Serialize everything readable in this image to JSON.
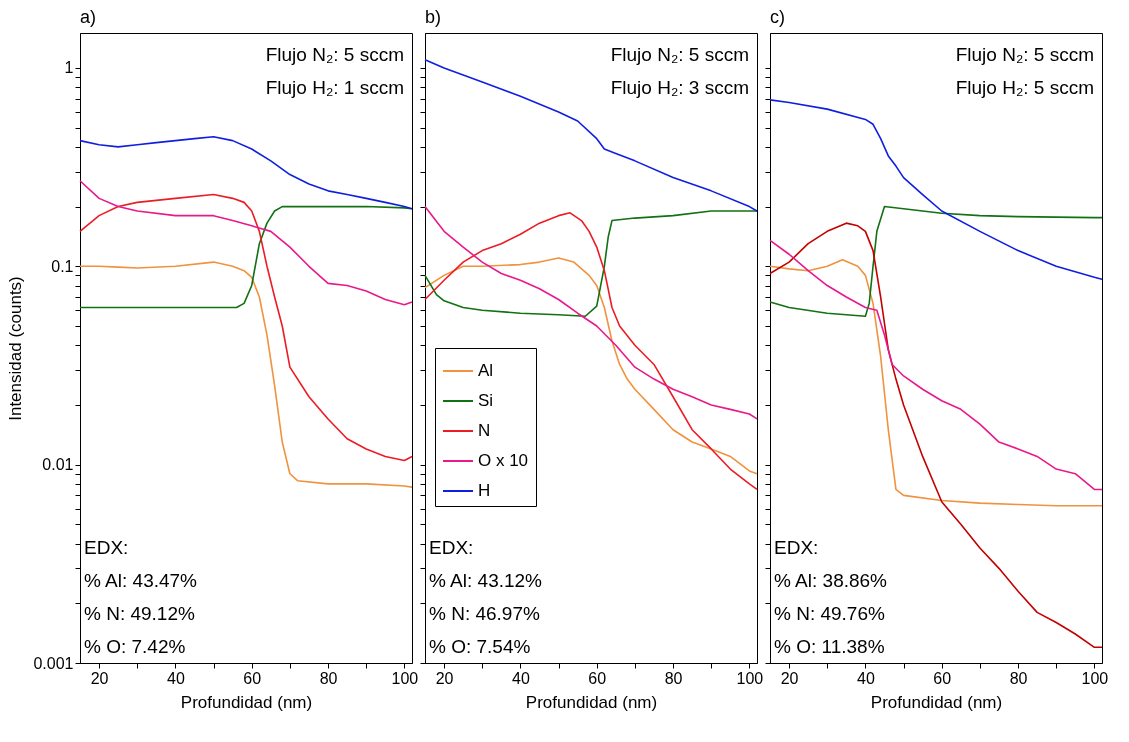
{
  "chart_data": [
    {
      "type": "line",
      "title": "a)",
      "xlabel": "Profundidad (nm)",
      "ylabel": "Intensidad (counts)",
      "log": "y",
      "xlim": [
        15,
        102
      ],
      "ylim": [
        0.001,
        1.5
      ],
      "xticks": [
        20,
        {
          "value": 30,
          "label": null
        },
        40,
        {
          "value": 50,
          "label": null
        },
        60,
        {
          "value": 70,
          "label": null
        },
        80,
        {
          "value": 90,
          "label": null
        },
        100
      ],
      "yticks": [
        0.001,
        {
          "value": 0.002,
          "label": null
        },
        {
          "value": 0.003,
          "label": null
        },
        {
          "value": 0.004,
          "label": null
        },
        {
          "value": 0.005,
          "label": null
        },
        {
          "value": 0.006,
          "label": null
        },
        {
          "value": 0.007,
          "label": null
        },
        {
          "value": 0.008,
          "label": null
        },
        {
          "value": 0.009,
          "label": null
        },
        0.01,
        {
          "value": 0.02,
          "label": null
        },
        {
          "value": 0.03,
          "label": null
        },
        {
          "value": 0.04,
          "label": null
        },
        {
          "value": 0.05,
          "label": null
        },
        {
          "value": 0.06,
          "label": null
        },
        {
          "value": 0.07,
          "label": null
        },
        {
          "value": 0.08,
          "label": null
        },
        {
          "value": 0.09,
          "label": null
        },
        0.1,
        {
          "value": 0.2,
          "label": null
        },
        {
          "value": 0.3,
          "label": null
        },
        {
          "value": 0.4,
          "label": null
        },
        {
          "value": 0.5,
          "label": null
        },
        {
          "value": 0.6,
          "label": null
        },
        {
          "value": 0.7,
          "label": null
        },
        {
          "value": 0.8,
          "label": null
        },
        {
          "value": 0.9,
          "label": null
        },
        1
      ],
      "grid": false,
      "annotations": [
        "Flujo N₂: 5 sccm",
        "Flujo H₂: 1 sccm",
        "EDX:",
        "% Al: 43.47%",
        "% N: 49.12%",
        "% O: 7.42%"
      ],
      "series": [
        {
          "color": "#f0923e",
          "x": [
            15,
            20,
            25,
            30,
            40,
            50,
            55,
            58,
            60,
            62,
            64,
            66,
            68,
            70,
            72,
            80,
            90,
            100,
            102
          ],
          "values": [
            0.1,
            0.1,
            0.099,
            0.098,
            0.1,
            0.105,
            0.1,
            0.095,
            0.088,
            0.07,
            0.045,
            0.025,
            0.013,
            0.009,
            0.0083,
            0.008,
            0.008,
            0.0078,
            0.0077
          ]
        },
        {
          "color": "#127112",
          "x": [
            15,
            20,
            30,
            40,
            50,
            56,
            58,
            60,
            62,
            64,
            66,
            68,
            70,
            80,
            90,
            100,
            102
          ],
          "values": [
            0.062,
            0.062,
            0.062,
            0.062,
            0.062,
            0.062,
            0.065,
            0.08,
            0.13,
            0.165,
            0.19,
            0.2,
            0.2,
            0.2,
            0.2,
            0.197,
            0.195
          ]
        },
        {
          "color": "#ec1c24",
          "x": [
            15,
            20,
            25,
            30,
            40,
            50,
            55,
            58,
            60,
            62,
            64,
            66,
            68,
            70,
            75,
            80,
            85,
            90,
            95,
            100,
            102
          ],
          "values": [
            0.15,
            0.18,
            0.2,
            0.21,
            0.22,
            0.23,
            0.22,
            0.21,
            0.19,
            0.15,
            0.1,
            0.07,
            0.05,
            0.031,
            0.022,
            0.017,
            0.0135,
            0.012,
            0.011,
            0.0105,
            0.011
          ]
        },
        {
          "color": "#e8198b",
          "x": [
            15,
            20,
            25,
            30,
            40,
            50,
            55,
            60,
            65,
            70,
            75,
            80,
            85,
            90,
            95,
            100,
            102
          ],
          "values": [
            0.27,
            0.22,
            0.2,
            0.19,
            0.18,
            0.18,
            0.17,
            0.16,
            0.15,
            0.125,
            0.1,
            0.082,
            0.08,
            0.075,
            0.068,
            0.064,
            0.066
          ]
        },
        {
          "color": "#0f1fe0",
          "x": [
            15,
            20,
            25,
            30,
            35,
            40,
            45,
            50,
            55,
            60,
            65,
            70,
            75,
            80,
            85,
            90,
            95,
            100,
            102
          ],
          "values": [
            0.43,
            0.41,
            0.4,
            0.41,
            0.42,
            0.43,
            0.44,
            0.45,
            0.43,
            0.39,
            0.34,
            0.29,
            0.26,
            0.24,
            0.23,
            0.22,
            0.21,
            0.2,
            0.195
          ]
        }
      ]
    },
    {
      "type": "line",
      "title": "b)",
      "xlabel": "Profundidad (nm)",
      "log": "y",
      "xlim": [
        15,
        102
      ],
      "ylim": [
        0.001,
        1.5
      ],
      "tick_labels": "x",
      "legend": "left",
      "xticks": [
        20,
        {
          "value": 30,
          "label": null
        },
        40,
        {
          "value": 50,
          "label": null
        },
        60,
        {
          "value": 70,
          "label": null
        },
        80,
        {
          "value": 90,
          "label": null
        },
        100
      ],
      "yticks": [
        0.001,
        {
          "value": 0.002,
          "label": null
        },
        {
          "value": 0.003,
          "label": null
        },
        {
          "value": 0.004,
          "label": null
        },
        {
          "value": 0.005,
          "label": null
        },
        {
          "value": 0.006,
          "label": null
        },
        {
          "value": 0.007,
          "label": null
        },
        {
          "value": 0.008,
          "label": null
        },
        {
          "value": 0.009,
          "label": null
        },
        0.01,
        {
          "value": 0.02,
          "label": null
        },
        {
          "value": 0.03,
          "label": null
        },
        {
          "value": 0.04,
          "label": null
        },
        {
          "value": 0.05,
          "label": null
        },
        {
          "value": 0.06,
          "label": null
        },
        {
          "value": 0.07,
          "label": null
        },
        {
          "value": 0.08,
          "label": null
        },
        {
          "value": 0.09,
          "label": null
        },
        0.1,
        {
          "value": 0.2,
          "label": null
        },
        {
          "value": 0.3,
          "label": null
        },
        {
          "value": 0.4,
          "label": null
        },
        {
          "value": 0.5,
          "label": null
        },
        {
          "value": 0.6,
          "label": null
        },
        {
          "value": 0.7,
          "label": null
        },
        {
          "value": 0.8,
          "label": null
        },
        {
          "value": 0.9,
          "label": null
        },
        1
      ],
      "grid": false,
      "annotations": [
        "Flujo N₂: 5 sccm",
        "Flujo H₂: 3 sccm",
        "EDX:",
        "% Al: 43.12%",
        "% N: 46.97%",
        "% O: 7.54%"
      ],
      "series": [
        {
          "name": "Al",
          "color": "#f0923e",
          "x": [
            15,
            20,
            25,
            30,
            40,
            45,
            50,
            54,
            58,
            60,
            62,
            64,
            66,
            68,
            70,
            75,
            80,
            85,
            90,
            95,
            100,
            102
          ],
          "values": [
            0.078,
            0.09,
            0.1,
            0.1,
            0.102,
            0.105,
            0.11,
            0.105,
            0.09,
            0.08,
            0.062,
            0.042,
            0.032,
            0.027,
            0.024,
            0.019,
            0.015,
            0.013,
            0.012,
            0.011,
            0.0093,
            0.009
          ]
        },
        {
          "name": "Si",
          "color": "#127112",
          "x": [
            15,
            18,
            20,
            25,
            30,
            40,
            50,
            57,
            60,
            62,
            63,
            64,
            70,
            80,
            90,
            100,
            102
          ],
          "values": [
            0.09,
            0.072,
            0.067,
            0.062,
            0.06,
            0.058,
            0.057,
            0.056,
            0.063,
            0.1,
            0.14,
            0.17,
            0.175,
            0.18,
            0.19,
            0.19,
            0.19
          ]
        },
        {
          "name": "N",
          "color": "#ec1c24",
          "x": [
            15,
            20,
            25,
            30,
            35,
            40,
            45,
            50,
            53,
            56,
            58,
            60,
            62,
            64,
            66,
            70,
            75,
            80,
            85,
            90,
            95,
            100,
            102
          ],
          "values": [
            0.068,
            0.085,
            0.105,
            0.12,
            0.13,
            0.145,
            0.165,
            0.18,
            0.186,
            0.17,
            0.15,
            0.125,
            0.095,
            0.062,
            0.05,
            0.04,
            0.032,
            0.022,
            0.015,
            0.012,
            0.0095,
            0.008,
            0.0075
          ]
        },
        {
          "name": "O x 10",
          "color": "#e8198b",
          "x": [
            15,
            20,
            25,
            30,
            35,
            40,
            45,
            50,
            55,
            60,
            65,
            70,
            75,
            80,
            85,
            90,
            95,
            100,
            102
          ],
          "values": [
            0.2,
            0.15,
            0.125,
            0.105,
            0.092,
            0.085,
            0.077,
            0.068,
            0.058,
            0.05,
            0.04,
            0.031,
            0.027,
            0.024,
            0.022,
            0.02,
            0.019,
            0.018,
            0.017
          ]
        },
        {
          "name": "H",
          "color": "#0f1fe0",
          "x": [
            15,
            20,
            30,
            40,
            50,
            55,
            60,
            62,
            65,
            70,
            80,
            90,
            100,
            102
          ],
          "values": [
            1.1,
            1.0,
            0.85,
            0.72,
            0.6,
            0.54,
            0.44,
            0.39,
            0.37,
            0.34,
            0.28,
            0.24,
            0.2,
            0.19
          ]
        }
      ]
    },
    {
      "type": "line",
      "title": "c)",
      "xlabel": "Profundidad (nm)",
      "log": "y",
      "xlim": [
        15,
        102
      ],
      "ylim": [
        0.001,
        1.5
      ],
      "tick_labels": "x",
      "xticks": [
        20,
        {
          "value": 30,
          "label": null
        },
        40,
        {
          "value": 50,
          "label": null
        },
        60,
        {
          "value": 70,
          "label": null
        },
        80,
        {
          "value": 90,
          "label": null
        },
        100
      ],
      "yticks": [
        0.001,
        {
          "value": 0.002,
          "label": null
        },
        {
          "value": 0.003,
          "label": null
        },
        {
          "value": 0.004,
          "label": null
        },
        {
          "value": 0.005,
          "label": null
        },
        {
          "value": 0.006,
          "label": null
        },
        {
          "value": 0.007,
          "label": null
        },
        {
          "value": 0.008,
          "label": null
        },
        {
          "value": 0.009,
          "label": null
        },
        0.01,
        {
          "value": 0.02,
          "label": null
        },
        {
          "value": 0.03,
          "label": null
        },
        {
          "value": 0.04,
          "label": null
        },
        {
          "value": 0.05,
          "label": null
        },
        {
          "value": 0.06,
          "label": null
        },
        {
          "value": 0.07,
          "label": null
        },
        {
          "value": 0.08,
          "label": null
        },
        {
          "value": 0.09,
          "label": null
        },
        0.1,
        {
          "value": 0.2,
          "label": null
        },
        {
          "value": 0.3,
          "label": null
        },
        {
          "value": 0.4,
          "label": null
        },
        {
          "value": 0.5,
          "label": null
        },
        {
          "value": 0.6,
          "label": null
        },
        {
          "value": 0.7,
          "label": null
        },
        {
          "value": 0.8,
          "label": null
        },
        {
          "value": 0.9,
          "label": null
        },
        1
      ],
      "grid": false,
      "annotations": [
        "Flujo N₂: 5 sccm",
        "Flujo H₂: 5 sccm",
        "EDX:",
        "% Al: 38.86%",
        "% N: 49.76%",
        "% O: 11.38%"
      ],
      "series": [
        {
          "color": "#f0923e",
          "x": [
            15,
            20,
            25,
            30,
            34,
            38,
            40,
            42,
            44,
            46,
            48,
            50,
            60,
            70,
            80,
            90,
            100,
            102
          ],
          "values": [
            0.1,
            0.097,
            0.095,
            0.1,
            0.108,
            0.1,
            0.09,
            0.065,
            0.035,
            0.015,
            0.0075,
            0.007,
            0.0066,
            0.0064,
            0.0063,
            0.0062,
            0.0062,
            0.0062
          ]
        },
        {
          "color": "#127112",
          "x": [
            15,
            20,
            30,
            40,
            41,
            42,
            43,
            45,
            50,
            60,
            70,
            80,
            90,
            100,
            102
          ],
          "values": [
            0.066,
            0.062,
            0.058,
            0.056,
            0.065,
            0.1,
            0.15,
            0.2,
            0.195,
            0.185,
            0.18,
            0.178,
            0.177,
            0.176,
            0.176
          ]
        },
        {
          "color": "#c40000",
          "x": [
            15,
            20,
            25,
            30,
            35,
            38,
            40,
            42,
            44,
            46,
            48,
            50,
            55,
            60,
            65,
            70,
            75,
            80,
            85,
            90,
            95,
            100,
            102
          ],
          "values": [
            0.092,
            0.105,
            0.13,
            0.15,
            0.165,
            0.16,
            0.15,
            0.12,
            0.07,
            0.038,
            0.027,
            0.02,
            0.011,
            0.0065,
            0.005,
            0.0038,
            0.003,
            0.0023,
            0.0018,
            0.0016,
            0.0014,
            0.0012,
            0.0012
          ]
        },
        {
          "color": "#e8198b",
          "x": [
            15,
            20,
            25,
            30,
            35,
            40,
            43,
            45,
            47,
            50,
            55,
            60,
            65,
            70,
            75,
            80,
            85,
            90,
            95,
            100,
            102
          ],
          "values": [
            0.135,
            0.115,
            0.095,
            0.08,
            0.07,
            0.062,
            0.06,
            0.045,
            0.032,
            0.028,
            0.024,
            0.021,
            0.019,
            0.016,
            0.013,
            0.012,
            0.011,
            0.0095,
            0.009,
            0.0075,
            0.0075
          ]
        },
        {
          "color": "#0f1fe0",
          "x": [
            15,
            20,
            30,
            40,
            42,
            44,
            46,
            48,
            50,
            55,
            60,
            70,
            80,
            90,
            100,
            102
          ],
          "values": [
            0.69,
            0.67,
            0.62,
            0.55,
            0.52,
            0.44,
            0.36,
            0.32,
            0.28,
            0.23,
            0.19,
            0.15,
            0.12,
            0.1,
            0.088,
            0.086
          ]
        }
      ]
    }
  ]
}
